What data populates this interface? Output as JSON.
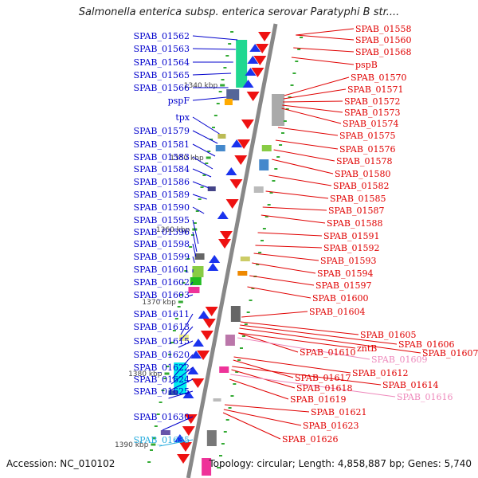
{
  "title": "Salmonella enterica subsp. enterica serovar Paratyphi B str....",
  "footer": {
    "accession": "Accession: NC_010102",
    "summary": "Topology: circular; Length: 4,858,887 bp; Genes: 5,740"
  },
  "colors": {
    "left_label": "#0000cc",
    "right_label": "#e00000",
    "pink_label": "#ee88bb",
    "cyan_label": "#22aadd",
    "backbone": "#888888"
  },
  "kbp_marks": [
    {
      "label": "1340 kbp"
    },
    {
      "label": "1350 kbp"
    },
    {
      "label": "1360 kbp"
    },
    {
      "label": "1370 kbp"
    },
    {
      "label": "1380 kbp"
    },
    {
      "label": "1390 kbp"
    }
  ],
  "left_labels": [
    {
      "text": "SPAB_01562",
      "color": "blue"
    },
    {
      "text": "SPAB_01563",
      "color": "blue"
    },
    {
      "text": "SPAB_01564",
      "color": "blue"
    },
    {
      "text": "SPAB_01565",
      "color": "blue"
    },
    {
      "text": "SPAB_01566",
      "color": "blue"
    },
    {
      "text": "pspF",
      "color": "blue"
    },
    {
      "text": "tpx",
      "color": "blue"
    },
    {
      "text": "SPAB_01579",
      "color": "blue"
    },
    {
      "text": "SPAB_01581",
      "color": "blue"
    },
    {
      "text": "SPAB_01583",
      "color": "blue"
    },
    {
      "text": "SPAB_01584",
      "color": "blue"
    },
    {
      "text": "SPAB_01586",
      "color": "blue"
    },
    {
      "text": "SPAB_01589",
      "color": "blue"
    },
    {
      "text": "SPAB_01590",
      "color": "blue"
    },
    {
      "text": "SPAB_01595",
      "color": "blue"
    },
    {
      "text": "SPAB_01596",
      "color": "blue"
    },
    {
      "text": "SPAB_01598",
      "color": "blue"
    },
    {
      "text": "SPAB_01599",
      "color": "blue"
    },
    {
      "text": "SPAB_01601",
      "color": "blue"
    },
    {
      "text": "SPAB_01602",
      "color": "blue"
    },
    {
      "text": "SPAB_01603",
      "color": "blue"
    },
    {
      "text": "SPAB_01611",
      "color": "blue"
    },
    {
      "text": "SPAB_01613",
      "color": "blue"
    },
    {
      "text": "SPAB_01615",
      "color": "blue"
    },
    {
      "text": "SPAB_01620",
      "color": "blue"
    },
    {
      "text": "SPAB_01622",
      "color": "blue"
    },
    {
      "text": "SPAB_01624",
      "color": "blue"
    },
    {
      "text": "SPAB_01625",
      "color": "blue"
    },
    {
      "text": "SPAB_01630",
      "color": "blue"
    },
    {
      "text": "SPAB_01635",
      "color": "cyan"
    }
  ],
  "right_labels": [
    {
      "text": "SPAB_01558",
      "color": "red"
    },
    {
      "text": "SPAB_01560",
      "color": "red"
    },
    {
      "text": "SPAB_01568",
      "color": "red"
    },
    {
      "text": "pspB",
      "color": "red"
    },
    {
      "text": "SPAB_01570",
      "color": "red"
    },
    {
      "text": "SPAB_01571",
      "color": "red"
    },
    {
      "text": "SPAB_01572",
      "color": "red"
    },
    {
      "text": "SPAB_01573",
      "color": "red"
    },
    {
      "text": "SPAB_01574",
      "color": "red"
    },
    {
      "text": "SPAB_01575",
      "color": "red"
    },
    {
      "text": "SPAB_01576",
      "color": "red"
    },
    {
      "text": "SPAB_01578",
      "color": "red"
    },
    {
      "text": "SPAB_01580",
      "color": "red"
    },
    {
      "text": "SPAB_01582",
      "color": "red"
    },
    {
      "text": "SPAB_01585",
      "color": "red"
    },
    {
      "text": "SPAB_01587",
      "color": "red"
    },
    {
      "text": "SPAB_01588",
      "color": "red"
    },
    {
      "text": "SPAB_01591",
      "color": "red"
    },
    {
      "text": "SPAB_01592",
      "color": "red"
    },
    {
      "text": "SPAB_01593",
      "color": "red"
    },
    {
      "text": "SPAB_01594",
      "color": "red"
    },
    {
      "text": "SPAB_01597",
      "color": "red"
    },
    {
      "text": "SPAB_01600",
      "color": "red"
    },
    {
      "text": "SPAB_01604",
      "color": "red"
    },
    {
      "text": "SPAB_01605",
      "color": "red"
    },
    {
      "text": "SPAB_01606",
      "color": "red"
    },
    {
      "text": "SPAB_01607",
      "color": "red"
    },
    {
      "text": "zntB",
      "color": "red"
    },
    {
      "text": "SPAB_01610",
      "color": "red"
    },
    {
      "text": "SPAB_01609",
      "color": "pink"
    },
    {
      "text": "SPAB_01612",
      "color": "red"
    },
    {
      "text": "SPAB_01617",
      "color": "red"
    },
    {
      "text": "SPAB_01614",
      "color": "red"
    },
    {
      "text": "SPAB_01618",
      "color": "red"
    },
    {
      "text": "SPAB_01616",
      "color": "pink"
    },
    {
      "text": "SPAB_01619",
      "color": "red"
    },
    {
      "text": "SPAB_01621",
      "color": "red"
    },
    {
      "text": "SPAB_01623",
      "color": "red"
    },
    {
      "text": "SPAB_01626",
      "color": "red"
    }
  ]
}
